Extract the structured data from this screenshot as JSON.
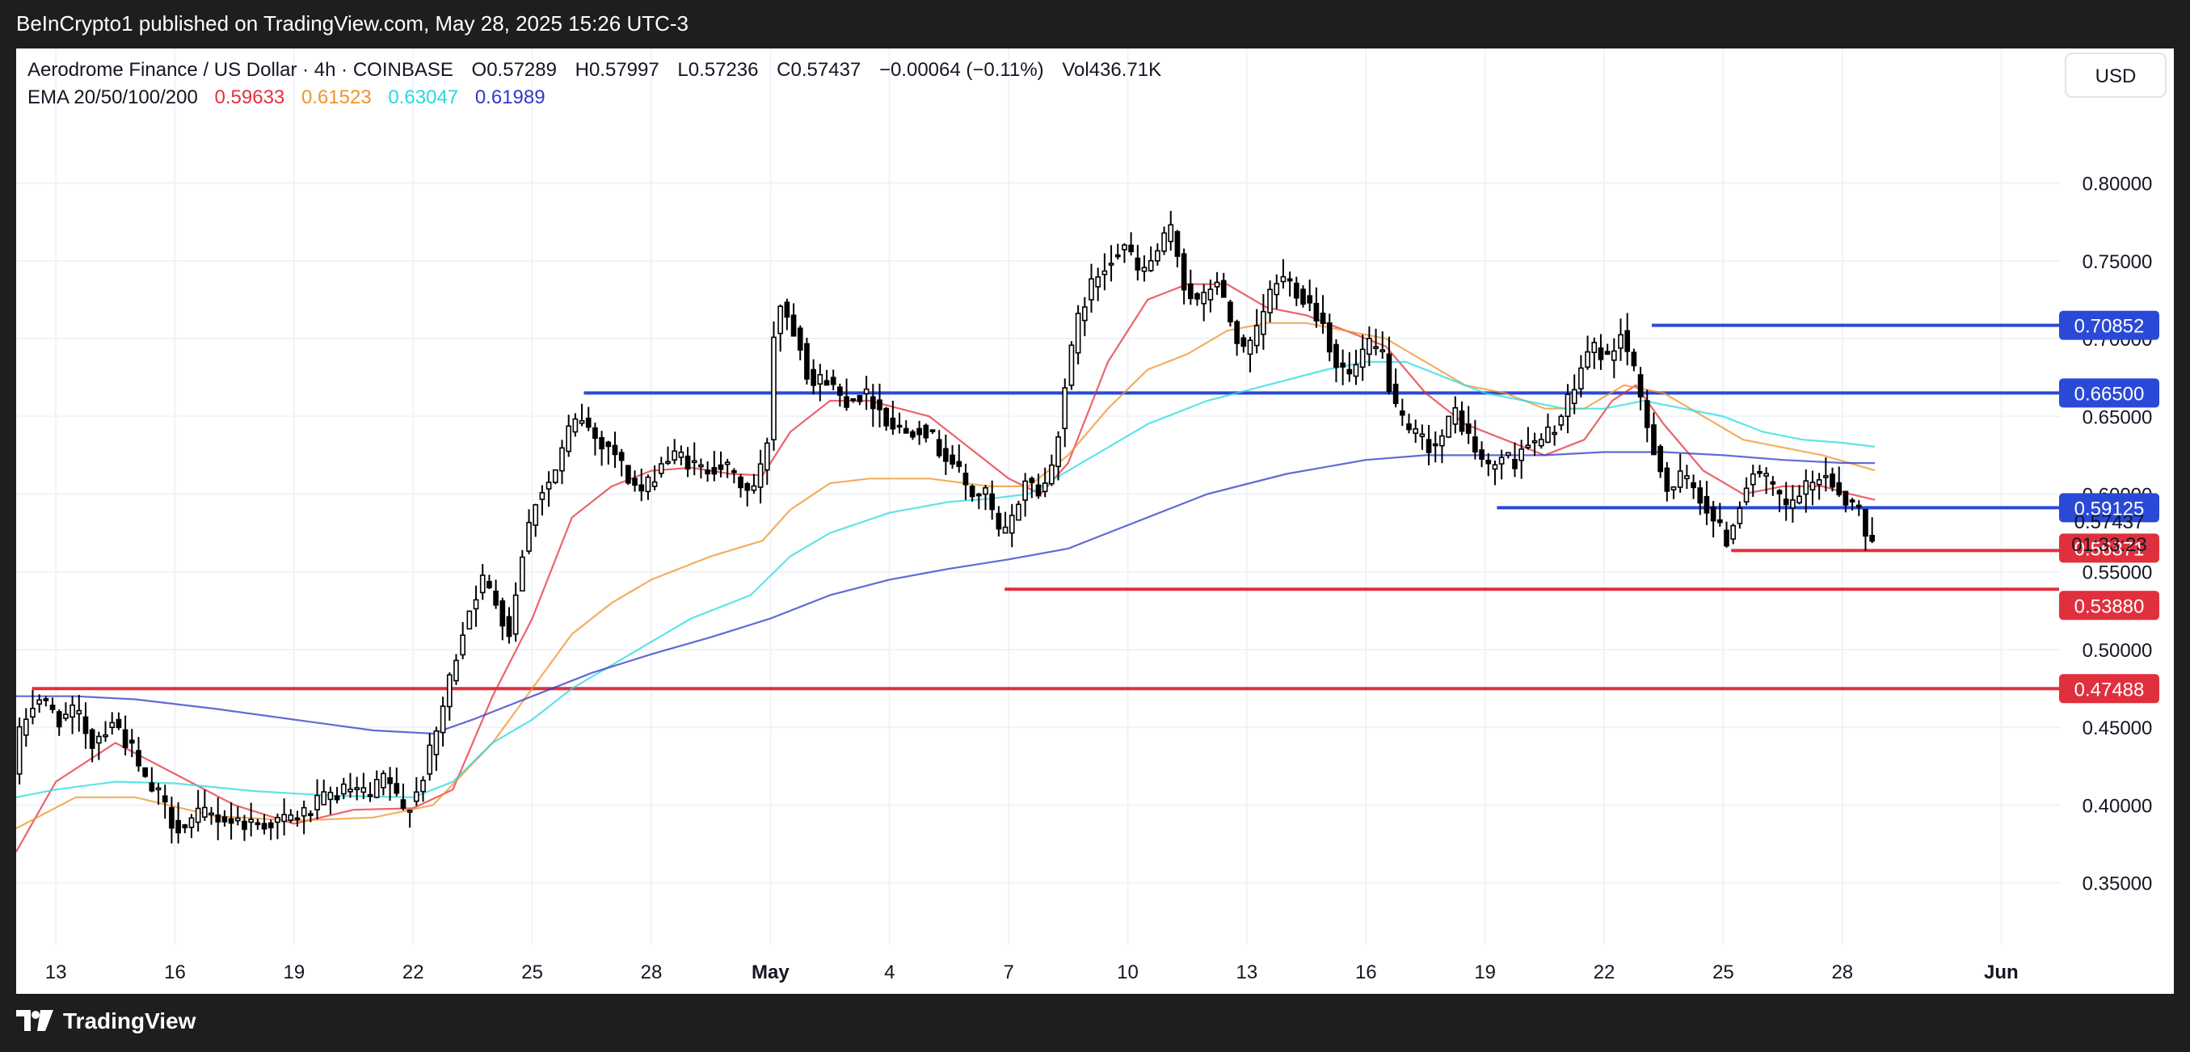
{
  "header": {
    "published": "BeInCrypto1 published on TradingView.com, May 28, 2025 15:26 UTC-3"
  },
  "legend": {
    "symbol": "Aerodrome Finance / US Dollar · 4h · COINBASE",
    "open": "O0.57289",
    "high": "H0.57997",
    "low": "L0.57236",
    "close": "C0.57437",
    "change": "−0.00064 (−0.11%)",
    "volume": "Vol436.71K",
    "ema_label": "EMA 20/50/100/200",
    "ema_values": [
      {
        "value": "0.59633",
        "color": "#e5303a"
      },
      {
        "value": "0.61523",
        "color": "#f0932b"
      },
      {
        "value": "0.63047",
        "color": "#2ad9e0"
      },
      {
        "value": "0.61989",
        "color": "#2e38c8"
      }
    ]
  },
  "currency": "USD",
  "footer": {
    "brand": "TradingView"
  },
  "chart_data": {
    "type": "candlestick",
    "interval": "4h",
    "price_axis": {
      "ticks": [
        0.35,
        0.4,
        0.45,
        0.5,
        0.55,
        0.6,
        0.65,
        0.7,
        0.75,
        0.8
      ],
      "tick_labels": [
        "0.35000",
        "0.40000",
        "0.45000",
        "0.50000",
        "0.55000",
        "0.60000",
        "0.65000",
        "0.70000",
        "0.75000",
        "0.80000"
      ],
      "ylim": [
        0.315,
        0.845
      ]
    },
    "time_axis": {
      "labels": [
        {
          "label": "13",
          "day": 0
        },
        {
          "label": "16",
          "day": 3
        },
        {
          "label": "19",
          "day": 6
        },
        {
          "label": "22",
          "day": 9
        },
        {
          "label": "25",
          "day": 12
        },
        {
          "label": "28",
          "day": 15
        },
        {
          "label": "May",
          "day": 18,
          "bold": true
        },
        {
          "label": "4",
          "day": 21
        },
        {
          "label": "7",
          "day": 24
        },
        {
          "label": "10",
          "day": 27
        },
        {
          "label": "13",
          "day": 30
        },
        {
          "label": "16",
          "day": 33
        },
        {
          "label": "19",
          "day": 36
        },
        {
          "label": "22",
          "day": 39
        },
        {
          "label": "25",
          "day": 42
        },
        {
          "label": "28",
          "day": 45
        },
        {
          "label": "Jun",
          "day": 49,
          "bold": true
        }
      ],
      "xlim": [
        -1.0,
        50.5
      ]
    },
    "price_anchors": [
      [
        -1.0,
        0.42
      ],
      [
        -0.8,
        0.45
      ],
      [
        -0.4,
        0.47
      ],
      [
        0.2,
        0.455
      ],
      [
        0.6,
        0.46
      ],
      [
        1.0,
        0.44
      ],
      [
        1.5,
        0.455
      ],
      [
        2.0,
        0.435
      ],
      [
        2.3,
        0.415
      ],
      [
        2.7,
        0.405
      ],
      [
        3.0,
        0.39
      ],
      [
        3.3,
        0.385
      ],
      [
        3.8,
        0.395
      ],
      [
        4.5,
        0.39
      ],
      [
        5.2,
        0.388
      ],
      [
        5.8,
        0.39
      ],
      [
        6.4,
        0.395
      ],
      [
        6.9,
        0.405
      ],
      [
        7.5,
        0.41
      ],
      [
        8.0,
        0.405
      ],
      [
        8.4,
        0.42
      ],
      [
        8.8,
        0.395
      ],
      [
        9.2,
        0.41
      ],
      [
        9.6,
        0.44
      ],
      [
        10.0,
        0.48
      ],
      [
        10.4,
        0.52
      ],
      [
        10.8,
        0.545
      ],
      [
        11.2,
        0.53
      ],
      [
        11.5,
        0.51
      ],
      [
        11.8,
        0.56
      ],
      [
        12.2,
        0.6
      ],
      [
        12.6,
        0.61
      ],
      [
        13.0,
        0.64
      ],
      [
        13.3,
        0.65
      ],
      [
        13.7,
        0.635
      ],
      [
        14.1,
        0.63
      ],
      [
        14.5,
        0.61
      ],
      [
        14.9,
        0.6
      ],
      [
        15.3,
        0.62
      ],
      [
        15.8,
        0.625
      ],
      [
        16.3,
        0.615
      ],
      [
        16.8,
        0.62
      ],
      [
        17.2,
        0.61
      ],
      [
        17.6,
        0.6
      ],
      [
        17.9,
        0.62
      ],
      [
        18.1,
        0.65
      ],
      [
        18.2,
        0.73
      ],
      [
        18.5,
        0.715
      ],
      [
        18.8,
        0.7
      ],
      [
        19.1,
        0.67
      ],
      [
        19.5,
        0.675
      ],
      [
        19.9,
        0.66
      ],
      [
        20.3,
        0.665
      ],
      [
        20.7,
        0.66
      ],
      [
        21.1,
        0.645
      ],
      [
        21.5,
        0.64
      ],
      [
        21.9,
        0.645
      ],
      [
        22.3,
        0.63
      ],
      [
        22.7,
        0.62
      ],
      [
        23.1,
        0.6
      ],
      [
        23.5,
        0.6
      ],
      [
        23.9,
        0.57
      ],
      [
        24.2,
        0.585
      ],
      [
        24.5,
        0.61
      ],
      [
        24.9,
        0.6
      ],
      [
        25.2,
        0.62
      ],
      [
        25.5,
        0.67
      ],
      [
        25.9,
        0.72
      ],
      [
        26.3,
        0.74
      ],
      [
        26.7,
        0.755
      ],
      [
        27.0,
        0.76
      ],
      [
        27.4,
        0.74
      ],
      [
        27.8,
        0.755
      ],
      [
        28.2,
        0.77
      ],
      [
        28.5,
        0.735
      ],
      [
        28.9,
        0.72
      ],
      [
        29.3,
        0.74
      ],
      [
        29.6,
        0.715
      ],
      [
        30.0,
        0.69
      ],
      [
        30.3,
        0.7
      ],
      [
        30.6,
        0.725
      ],
      [
        30.9,
        0.74
      ],
      [
        31.2,
        0.735
      ],
      [
        31.6,
        0.725
      ],
      [
        32.0,
        0.71
      ],
      [
        32.3,
        0.685
      ],
      [
        32.7,
        0.675
      ],
      [
        33.1,
        0.695
      ],
      [
        33.5,
        0.69
      ],
      [
        33.8,
        0.655
      ],
      [
        34.1,
        0.64
      ],
      [
        34.5,
        0.635
      ],
      [
        34.8,
        0.63
      ],
      [
        35.1,
        0.64
      ],
      [
        35.3,
        0.655
      ],
      [
        35.6,
        0.64
      ],
      [
        35.9,
        0.625
      ],
      [
        36.2,
        0.615
      ],
      [
        36.5,
        0.625
      ],
      [
        36.8,
        0.62
      ],
      [
        37.1,
        0.635
      ],
      [
        37.4,
        0.63
      ],
      [
        37.7,
        0.64
      ],
      [
        38.0,
        0.65
      ],
      [
        38.3,
        0.665
      ],
      [
        38.6,
        0.69
      ],
      [
        38.9,
        0.695
      ],
      [
        39.2,
        0.685
      ],
      [
        39.5,
        0.705
      ],
      [
        39.8,
        0.68
      ],
      [
        40.1,
        0.65
      ],
      [
        40.4,
        0.625
      ],
      [
        40.7,
        0.6
      ],
      [
        41.0,
        0.61
      ],
      [
        41.3,
        0.605
      ],
      [
        41.6,
        0.595
      ],
      [
        41.9,
        0.58
      ],
      [
        42.2,
        0.57
      ],
      [
        42.5,
        0.595
      ],
      [
        42.8,
        0.615
      ],
      [
        43.1,
        0.61
      ],
      [
        43.4,
        0.6
      ],
      [
        43.7,
        0.59
      ],
      [
        44.0,
        0.6
      ],
      [
        44.3,
        0.605
      ],
      [
        44.6,
        0.615
      ],
      [
        44.9,
        0.605
      ],
      [
        45.2,
        0.595
      ],
      [
        45.5,
        0.59
      ],
      [
        45.7,
        0.57
      ],
      [
        45.82,
        0.57437
      ]
    ],
    "ema": [
      {
        "name": "EMA 20",
        "color": "#e5303a",
        "last": 0.59633,
        "points": [
          [
            -1.0,
            0.37
          ],
          [
            0.0,
            0.415
          ],
          [
            1.5,
            0.44
          ],
          [
            3.0,
            0.42
          ],
          [
            4.5,
            0.4
          ],
          [
            6.0,
            0.388
          ],
          [
            7.5,
            0.397
          ],
          [
            9.0,
            0.398
          ],
          [
            10.0,
            0.41
          ],
          [
            11.0,
            0.47
          ],
          [
            12.0,
            0.52
          ],
          [
            13.0,
            0.585
          ],
          [
            14.0,
            0.605
          ],
          [
            15.0,
            0.615
          ],
          [
            16.0,
            0.617
          ],
          [
            17.0,
            0.613
          ],
          [
            17.8,
            0.612
          ],
          [
            18.5,
            0.64
          ],
          [
            19.5,
            0.66
          ],
          [
            20.5,
            0.66
          ],
          [
            22.0,
            0.65
          ],
          [
            23.0,
            0.63
          ],
          [
            24.0,
            0.61
          ],
          [
            24.8,
            0.6
          ],
          [
            25.5,
            0.62
          ],
          [
            26.5,
            0.685
          ],
          [
            27.5,
            0.725
          ],
          [
            28.5,
            0.735
          ],
          [
            29.5,
            0.735
          ],
          [
            30.5,
            0.72
          ],
          [
            31.5,
            0.715
          ],
          [
            32.5,
            0.705
          ],
          [
            33.5,
            0.695
          ],
          [
            34.5,
            0.665
          ],
          [
            35.5,
            0.645
          ],
          [
            36.5,
            0.635
          ],
          [
            37.5,
            0.625
          ],
          [
            38.5,
            0.635
          ],
          [
            39.2,
            0.66
          ],
          [
            39.8,
            0.67
          ],
          [
            40.5,
            0.645
          ],
          [
            41.5,
            0.615
          ],
          [
            42.5,
            0.6
          ],
          [
            43.5,
            0.605
          ],
          [
            44.5,
            0.605
          ],
          [
            45.2,
            0.6
          ],
          [
            45.82,
            0.59633
          ]
        ]
      },
      {
        "name": "EMA 50",
        "color": "#f0932b",
        "last": 0.61523,
        "points": [
          [
            -1.0,
            0.385
          ],
          [
            0.5,
            0.405
          ],
          [
            2.0,
            0.405
          ],
          [
            4.0,
            0.393
          ],
          [
            6.0,
            0.39
          ],
          [
            8.0,
            0.392
          ],
          [
            9.5,
            0.4
          ],
          [
            11.0,
            0.44
          ],
          [
            12.0,
            0.475
          ],
          [
            13.0,
            0.51
          ],
          [
            14.0,
            0.53
          ],
          [
            15.0,
            0.545
          ],
          [
            16.5,
            0.56
          ],
          [
            17.8,
            0.57
          ],
          [
            18.5,
            0.59
          ],
          [
            19.5,
            0.607
          ],
          [
            20.5,
            0.61
          ],
          [
            22.0,
            0.61
          ],
          [
            23.5,
            0.605
          ],
          [
            24.5,
            0.605
          ],
          [
            25.5,
            0.625
          ],
          [
            26.5,
            0.655
          ],
          [
            27.5,
            0.68
          ],
          [
            28.5,
            0.69
          ],
          [
            29.5,
            0.705
          ],
          [
            30.5,
            0.71
          ],
          [
            31.5,
            0.71
          ],
          [
            32.5,
            0.705
          ],
          [
            33.5,
            0.7
          ],
          [
            34.5,
            0.685
          ],
          [
            35.5,
            0.67
          ],
          [
            36.5,
            0.665
          ],
          [
            37.5,
            0.655
          ],
          [
            38.5,
            0.655
          ],
          [
            39.5,
            0.67
          ],
          [
            40.5,
            0.665
          ],
          [
            41.5,
            0.65
          ],
          [
            42.5,
            0.635
          ],
          [
            43.5,
            0.63
          ],
          [
            44.5,
            0.625
          ],
          [
            45.82,
            0.61523
          ]
        ]
      },
      {
        "name": "EMA 100",
        "color": "#2ad9e0",
        "last": 0.63047,
        "points": [
          [
            -1.0,
            0.405
          ],
          [
            0.0,
            0.41
          ],
          [
            1.5,
            0.415
          ],
          [
            3.0,
            0.414
          ],
          [
            5.0,
            0.409
          ],
          [
            7.0,
            0.406
          ],
          [
            9.0,
            0.405
          ],
          [
            10.0,
            0.415
          ],
          [
            11.0,
            0.44
          ],
          [
            12.0,
            0.455
          ],
          [
            13.0,
            0.475
          ],
          [
            14.0,
            0.49
          ],
          [
            15.0,
            0.505
          ],
          [
            16.0,
            0.52
          ],
          [
            17.5,
            0.535
          ],
          [
            18.5,
            0.56
          ],
          [
            19.5,
            0.575
          ],
          [
            21.0,
            0.588
          ],
          [
            22.5,
            0.595
          ],
          [
            23.5,
            0.597
          ],
          [
            24.5,
            0.6
          ],
          [
            25.5,
            0.615
          ],
          [
            26.5,
            0.63
          ],
          [
            27.5,
            0.645
          ],
          [
            29.0,
            0.66
          ],
          [
            30.5,
            0.67
          ],
          [
            32.0,
            0.68
          ],
          [
            33.0,
            0.685
          ],
          [
            34.0,
            0.685
          ],
          [
            35.0,
            0.675
          ],
          [
            36.0,
            0.665
          ],
          [
            37.0,
            0.66
          ],
          [
            38.0,
            0.655
          ],
          [
            39.0,
            0.655
          ],
          [
            40.0,
            0.66
          ],
          [
            41.0,
            0.655
          ],
          [
            42.0,
            0.65
          ],
          [
            43.0,
            0.64
          ],
          [
            44.0,
            0.635
          ],
          [
            45.0,
            0.633
          ],
          [
            45.82,
            0.63047
          ]
        ]
      },
      {
        "name": "EMA 200",
        "color": "#2e38c8",
        "last": 0.61989,
        "points": [
          [
            -1.0,
            0.47
          ],
          [
            0.5,
            0.47
          ],
          [
            2.0,
            0.468
          ],
          [
            4.0,
            0.462
          ],
          [
            6.0,
            0.455
          ],
          [
            8.0,
            0.448
          ],
          [
            9.5,
            0.446
          ],
          [
            10.5,
            0.455
          ],
          [
            12.0,
            0.47
          ],
          [
            13.5,
            0.485
          ],
          [
            15.0,
            0.497
          ],
          [
            16.5,
            0.508
          ],
          [
            18.0,
            0.52
          ],
          [
            19.5,
            0.535
          ],
          [
            21.0,
            0.545
          ],
          [
            22.5,
            0.552
          ],
          [
            24.0,
            0.558
          ],
          [
            25.5,
            0.565
          ],
          [
            27.0,
            0.58
          ],
          [
            29.0,
            0.6
          ],
          [
            31.0,
            0.613
          ],
          [
            33.0,
            0.622
          ],
          [
            34.5,
            0.625
          ],
          [
            36.0,
            0.625
          ],
          [
            37.5,
            0.625
          ],
          [
            39.0,
            0.627
          ],
          [
            40.5,
            0.627
          ],
          [
            42.0,
            0.625
          ],
          [
            43.5,
            0.622
          ],
          [
            45.0,
            0.62
          ],
          [
            45.82,
            0.61989
          ]
        ]
      }
    ],
    "horizontal_levels": [
      {
        "price": 0.70852,
        "label": "0.70852",
        "color": "#2949d6",
        "from_day": 40.2
      },
      {
        "price": 0.665,
        "label": "0.66500",
        "color": "#2949d6",
        "from_day": 13.3
      },
      {
        "price": 0.59125,
        "label": "0.59125",
        "color": "#2949d6",
        "from_day": 36.3
      },
      {
        "price": 0.56371,
        "label": "0.56371",
        "color": "#e0303d",
        "from_day": 42.2
      },
      {
        "price": 0.5388,
        "label": "0.53880",
        "color": "#e0303d",
        "from_day": 23.9
      },
      {
        "price": 0.47488,
        "label": "0.47488",
        "color": "#e0303d",
        "from_day": -0.6
      }
    ],
    "last_price": {
      "label": "0.57437",
      "countdown": "01:33:23"
    },
    "grid": true
  }
}
